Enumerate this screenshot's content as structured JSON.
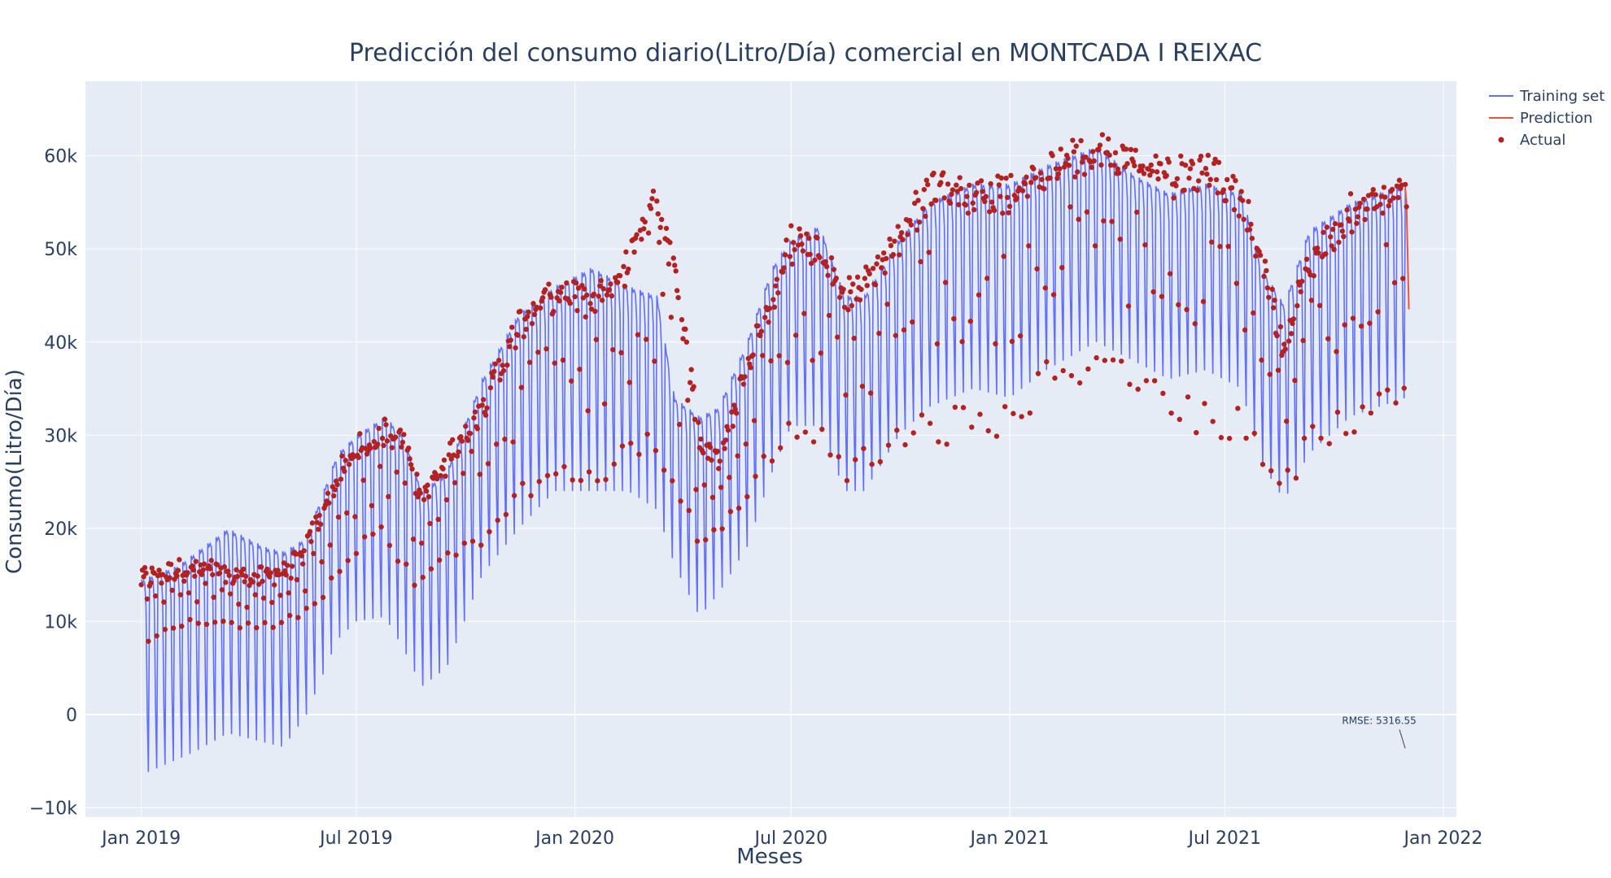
{
  "chart_data": {
    "type": "line",
    "title": "Predicción del consumo diario(Litro/Día) comercial en MONTCADA I REIXAC",
    "xlabel": "Meses",
    "ylabel": "Consumo(Litro/Día)",
    "xlim": [
      "2018-11-15",
      "2022-01-12"
    ],
    "ylim": [
      -11000,
      68000
    ],
    "x_ticks": [
      {
        "date": "2019-01-01",
        "label": "Jan 2019"
      },
      {
        "date": "2019-07-01",
        "label": "Jul 2019"
      },
      {
        "date": "2020-01-01",
        "label": "Jan 2020"
      },
      {
        "date": "2020-07-01",
        "label": "Jul 2020"
      },
      {
        "date": "2021-01-01",
        "label": "Jan 2021"
      },
      {
        "date": "2021-07-01",
        "label": "Jul 2021"
      },
      {
        "date": "2022-01-01",
        "label": "Jan 2022"
      }
    ],
    "y_ticks": [
      {
        "value": -10000,
        "label": "−10k"
      },
      {
        "value": 0,
        "label": "0"
      },
      {
        "value": 10000,
        "label": "10k"
      },
      {
        "value": 20000,
        "label": "20k"
      },
      {
        "value": 30000,
        "label": "30k"
      },
      {
        "value": 40000,
        "label": "40k"
      },
      {
        "value": 50000,
        "label": "50k"
      },
      {
        "value": 60000,
        "label": "60k"
      }
    ],
    "grid": true,
    "legend_position": "top-right",
    "background": "#e5ecf6",
    "series": [
      {
        "name": "Training set",
        "kind": "line",
        "color": "#636efa",
        "start": "2019-01-01",
        "end": "2021-11-30",
        "period_days": 7,
        "upper_envelope": [
          [
            "2019-01-01",
            14500
          ],
          [
            "2019-02-01",
            16000
          ],
          [
            "2019-03-15",
            20000
          ],
          [
            "2019-04-15",
            18000
          ],
          [
            "2019-05-01",
            17500
          ],
          [
            "2019-05-20",
            19000
          ],
          [
            "2019-06-15",
            28000
          ],
          [
            "2019-07-01",
            30000
          ],
          [
            "2019-07-25",
            32000
          ],
          [
            "2019-08-10",
            30000
          ],
          [
            "2019-08-25",
            24000
          ],
          [
            "2019-09-15",
            26000
          ],
          [
            "2019-10-15",
            36000
          ],
          [
            "2019-11-15",
            43000
          ],
          [
            "2019-12-15",
            46000
          ],
          [
            "2020-01-15",
            48000
          ],
          [
            "2020-02-15",
            46000
          ],
          [
            "2020-03-10",
            45000
          ],
          [
            "2020-03-25",
            34000
          ],
          [
            "2020-04-15",
            32000
          ],
          [
            "2020-05-01",
            33000
          ],
          [
            "2020-05-25",
            40000
          ],
          [
            "2020-06-15",
            48000
          ],
          [
            "2020-07-01",
            51000
          ],
          [
            "2020-07-25",
            52500
          ],
          [
            "2020-08-15",
            45000
          ],
          [
            "2020-09-01",
            45000
          ],
          [
            "2020-09-30",
            51000
          ],
          [
            "2020-10-25",
            55000
          ],
          [
            "2020-12-01",
            57000
          ],
          [
            "2021-01-01",
            57000
          ],
          [
            "2021-02-01",
            59000
          ],
          [
            "2021-03-15",
            61000
          ],
          [
            "2021-04-15",
            58000
          ],
          [
            "2021-05-15",
            56000
          ],
          [
            "2021-06-15",
            57000
          ],
          [
            "2021-07-15",
            56000
          ],
          [
            "2021-08-01",
            48000
          ],
          [
            "2021-08-20",
            44000
          ],
          [
            "2021-09-10",
            52000
          ],
          [
            "2021-10-15",
            55000
          ],
          [
            "2021-11-30",
            57000
          ]
        ],
        "lower_envelope": [
          [
            "2019-01-01",
            -6500
          ],
          [
            "2019-02-15",
            -4000
          ],
          [
            "2019-03-15",
            -2000
          ],
          [
            "2019-04-15",
            -3000
          ],
          [
            "2019-05-01",
            -3500
          ],
          [
            "2019-05-20",
            0
          ],
          [
            "2019-06-15",
            8000
          ],
          [
            "2019-07-01",
            10000
          ],
          [
            "2019-07-25",
            10500
          ],
          [
            "2019-08-10",
            7000
          ],
          [
            "2019-08-25",
            3000
          ],
          [
            "2019-09-15",
            5000
          ],
          [
            "2019-10-15",
            15000
          ],
          [
            "2019-11-15",
            20000
          ],
          [
            "2019-12-15",
            24000
          ],
          [
            "2020-01-15",
            24000
          ],
          [
            "2020-02-15",
            24000
          ],
          [
            "2020-03-10",
            22000
          ],
          [
            "2020-03-25",
            16000
          ],
          [
            "2020-04-15",
            10500
          ],
          [
            "2020-05-01",
            13000
          ],
          [
            "2020-05-25",
            18000
          ],
          [
            "2020-06-15",
            26000
          ],
          [
            "2020-07-01",
            31000
          ],
          [
            "2020-07-25",
            31000
          ],
          [
            "2020-08-15",
            24000
          ],
          [
            "2020-09-01",
            24000
          ],
          [
            "2020-09-30",
            30000
          ],
          [
            "2020-10-25",
            33000
          ],
          [
            "2020-12-01",
            35000
          ],
          [
            "2021-01-01",
            34000
          ],
          [
            "2021-02-01",
            37000
          ],
          [
            "2021-03-15",
            40000
          ],
          [
            "2021-04-15",
            38000
          ],
          [
            "2021-05-15",
            36000
          ],
          [
            "2021-06-15",
            37000
          ],
          [
            "2021-07-15",
            35000
          ],
          [
            "2021-08-01",
            27000
          ],
          [
            "2021-08-20",
            23000
          ],
          [
            "2021-09-10",
            28000
          ],
          [
            "2021-10-15",
            32000
          ],
          [
            "2021-11-30",
            34000
          ]
        ]
      },
      {
        "name": "Prediction",
        "kind": "line",
        "color": "#ef553b",
        "x": [
          "2021-11-30",
          "2021-12-01",
          "2021-12-02",
          "2021-12-03"
        ],
        "y": [
          56500,
          55000,
          49000,
          43500
        ]
      },
      {
        "name": "Actual",
        "kind": "markers",
        "color": "#b22222",
        "start": "2019-01-01",
        "end": "2021-12-01",
        "upper_envelope": [
          [
            "2019-01-01",
            15000
          ],
          [
            "2019-02-01",
            16000
          ],
          [
            "2019-03-15",
            15500
          ],
          [
            "2019-04-15",
            15000
          ],
          [
            "2019-05-15",
            17000
          ],
          [
            "2019-06-15",
            26000
          ],
          [
            "2019-07-01",
            29000
          ],
          [
            "2019-07-25",
            31000
          ],
          [
            "2019-08-10",
            30000
          ],
          [
            "2019-08-25",
            24000
          ],
          [
            "2019-09-15",
            28000
          ],
          [
            "2019-10-15",
            34000
          ],
          [
            "2019-11-15",
            43000
          ],
          [
            "2019-12-15",
            47000
          ],
          [
            "2020-01-15",
            46000
          ],
          [
            "2020-02-15",
            50000
          ],
          [
            "2020-03-05",
            56000
          ],
          [
            "2020-03-25",
            50000
          ],
          [
            "2020-04-15",
            30000
          ],
          [
            "2020-05-01",
            28000
          ],
          [
            "2020-05-25",
            38000
          ],
          [
            "2020-06-15",
            46000
          ],
          [
            "2020-07-01",
            52000
          ],
          [
            "2020-07-25",
            51000
          ],
          [
            "2020-08-15",
            46000
          ],
          [
            "2020-09-01",
            47000
          ],
          [
            "2020-09-30",
            53000
          ],
          [
            "2020-10-25",
            58000
          ],
          [
            "2020-12-01",
            58000
          ],
          [
            "2021-01-01",
            57000
          ],
          [
            "2021-02-01",
            60000
          ],
          [
            "2021-03-15",
            62500
          ],
          [
            "2021-04-15",
            61000
          ],
          [
            "2021-05-15",
            60000
          ],
          [
            "2021-06-15",
            60000
          ],
          [
            "2021-07-15",
            57000
          ],
          [
            "2021-08-01",
            50000
          ],
          [
            "2021-08-20",
            40000
          ],
          [
            "2021-09-10",
            50000
          ],
          [
            "2021-10-15",
            55000
          ],
          [
            "2021-12-01",
            58000
          ]
        ],
        "lower_envelope": [
          [
            "2019-01-01",
            7000
          ],
          [
            "2019-02-01",
            9500
          ],
          [
            "2019-03-15",
            9000
          ],
          [
            "2019-04-15",
            9000
          ],
          [
            "2019-05-15",
            10000
          ],
          [
            "2019-06-15",
            14000
          ],
          [
            "2019-07-01",
            17000
          ],
          [
            "2019-07-25",
            19000
          ],
          [
            "2019-08-10",
            15000
          ],
          [
            "2019-08-25",
            13000
          ],
          [
            "2019-09-15",
            16000
          ],
          [
            "2019-10-15",
            18000
          ],
          [
            "2019-11-15",
            22000
          ],
          [
            "2019-12-15",
            23000
          ],
          [
            "2020-01-15",
            24000
          ],
          [
            "2020-02-15",
            26000
          ],
          [
            "2020-03-05",
            28000
          ],
          [
            "2020-03-25",
            24000
          ],
          [
            "2020-04-15",
            18000
          ],
          [
            "2020-05-01",
            19000
          ],
          [
            "2020-05-25",
            23000
          ],
          [
            "2020-06-15",
            27000
          ],
          [
            "2020-07-01",
            28000
          ],
          [
            "2020-07-25",
            28000
          ],
          [
            "2020-08-15",
            25000
          ],
          [
            "2020-09-01",
            26000
          ],
          [
            "2020-09-30",
            28000
          ],
          [
            "2020-10-25",
            29000
          ],
          [
            "2020-12-01",
            29000
          ],
          [
            "2021-01-01",
            30000
          ],
          [
            "2021-02-01",
            34000
          ],
          [
            "2021-03-15",
            36000
          ],
          [
            "2021-04-15",
            34000
          ],
          [
            "2021-05-15",
            31000
          ],
          [
            "2021-06-15",
            30000
          ],
          [
            "2021-07-15",
            29000
          ],
          [
            "2021-08-01",
            27000
          ],
          [
            "2021-08-20",
            23000
          ],
          [
            "2021-09-10",
            28000
          ],
          [
            "2021-10-15",
            30000
          ],
          [
            "2021-12-01",
            33000
          ]
        ]
      }
    ],
    "annotations": [
      {
        "text": "RMSE: 5316.55",
        "x": "2021-10-15",
        "y": -1000
      }
    ]
  }
}
